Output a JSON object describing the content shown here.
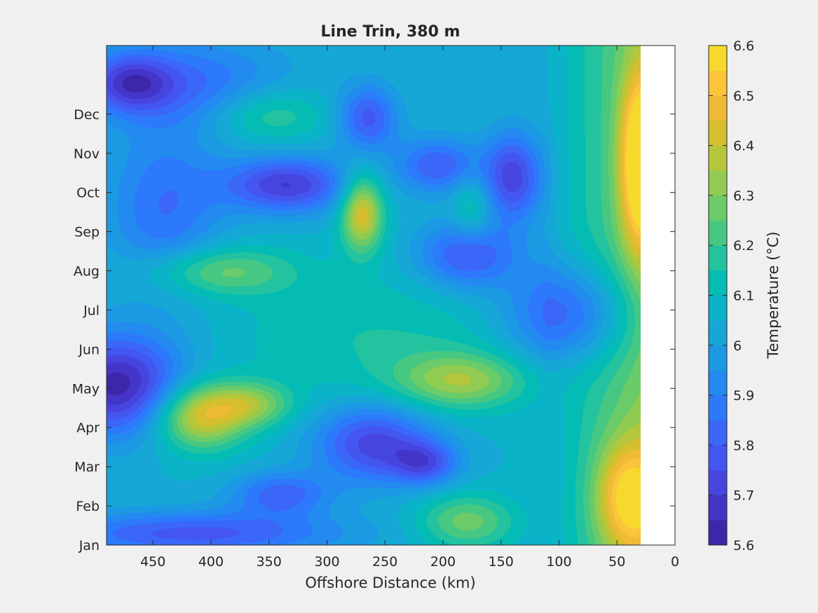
{
  "chart_data": {
    "type": "heatmap",
    "title": "Line Trin, 380 m",
    "xlabel": "Offshore Distance (km)",
    "ylabel": "",
    "x_axis_reversed": true,
    "xlim": [
      0,
      490
    ],
    "x_ticks": [
      450,
      400,
      350,
      300,
      250,
      200,
      150,
      100,
      50,
      0
    ],
    "y_ticks": [
      "Jan",
      "Feb",
      "Mar",
      "Apr",
      "May",
      "Jun",
      "Jul",
      "Aug",
      "Sep",
      "Oct",
      "Nov",
      "Dec"
    ],
    "no_data_region_x": [
      0,
      30
    ],
    "colorbar": {
      "label": "Temperature (°C)",
      "min": 5.6,
      "max": 6.6,
      "ticks": [
        "5.6",
        "5.7",
        "5.8",
        "5.9",
        "6",
        "6.1",
        "6.2",
        "6.3",
        "6.4",
        "6.5",
        "6.6"
      ],
      "levels": [
        5.6,
        5.65,
        5.7,
        5.75,
        5.8,
        5.85,
        5.9,
        5.95,
        6.0,
        6.05,
        6.1,
        6.15,
        6.2,
        6.25,
        6.3,
        6.35,
        6.4,
        6.45,
        6.5,
        6.55,
        6.6
      ],
      "colors": [
        "#3e26a8",
        "#4435c9",
        "#4745e0",
        "#4356f0",
        "#3a67f8",
        "#2d79fb",
        "#238af0",
        "#1c99e3",
        "#16a7d7",
        "#0bb3c8",
        "#05bcb4",
        "#22c39e",
        "#46c883",
        "#6bcb69",
        "#92cb52",
        "#b6c63a",
        "#d5bf2f",
        "#efba36",
        "#fbc43a",
        "#f7d92e",
        "#f5f01f"
      ]
    },
    "field_background": 6.05,
    "features": [
      {
        "x": 480,
        "month": 4.1,
        "value": 5.62,
        "sx": 40,
        "sy": 0.9
      },
      {
        "x": 470,
        "month": 11.8,
        "value": 5.78,
        "sx": 25,
        "sy": 0.5
      },
      {
        "x": 410,
        "month": 3.3,
        "value": 6.45,
        "sx": 28,
        "sy": 0.6
      },
      {
        "x": 365,
        "month": 3.6,
        "value": 6.28,
        "sx": 25,
        "sy": 0.4
      },
      {
        "x": 395,
        "month": 7.0,
        "value": 6.28,
        "sx": 45,
        "sy": 0.45
      },
      {
        "x": 350,
        "month": 11.0,
        "value": 6.22,
        "sx": 35,
        "sy": 0.5
      },
      {
        "x": 335,
        "month": 9.2,
        "value": 5.7,
        "sx": 38,
        "sy": 0.5
      },
      {
        "x": 270,
        "month": 8.5,
        "value": 6.45,
        "sx": 13,
        "sy": 0.7
      },
      {
        "x": 265,
        "month": 10.9,
        "value": 5.78,
        "sx": 18,
        "sy": 0.6
      },
      {
        "x": 260,
        "month": 2.6,
        "value": 5.72,
        "sx": 35,
        "sy": 0.7
      },
      {
        "x": 215,
        "month": 2.1,
        "value": 5.8,
        "sx": 20,
        "sy": 0.4
      },
      {
        "x": 205,
        "month": 9.7,
        "value": 5.8,
        "sx": 25,
        "sy": 0.5
      },
      {
        "x": 185,
        "month": 4.2,
        "value": 6.32,
        "sx": 40,
        "sy": 0.5
      },
      {
        "x": 180,
        "month": 0.6,
        "value": 6.28,
        "sx": 30,
        "sy": 0.5
      },
      {
        "x": 175,
        "month": 8.6,
        "value": 6.18,
        "sx": 12,
        "sy": 0.6
      },
      {
        "x": 180,
        "month": 7.4,
        "value": 5.78,
        "sx": 30,
        "sy": 0.6
      },
      {
        "x": 140,
        "month": 9.4,
        "value": 5.72,
        "sx": 18,
        "sy": 0.8
      },
      {
        "x": 90,
        "month": 5.9,
        "value": 5.78,
        "sx": 40,
        "sy": 0.9
      },
      {
        "x": 260,
        "month": 5.3,
        "value": 6.15,
        "sx": 90,
        "sy": 1.2
      },
      {
        "x": 415,
        "month": 0.3,
        "value": 5.78,
        "sx": 90,
        "sy": 0.4
      },
      {
        "x": 340,
        "month": 1.3,
        "value": 5.82,
        "sx": 30,
        "sy": 0.4
      },
      {
        "x": 440,
        "month": 8.6,
        "value": 5.85,
        "sx": 35,
        "sy": 1.5
      },
      {
        "x": 420,
        "month": 11.8,
        "value": 5.85,
        "sx": 60,
        "sy": 0.8
      },
      {
        "x": 40,
        "month": 1.2,
        "value": 6.42,
        "sx": 20,
        "sy": 1.0
      },
      {
        "x": 30,
        "month": 9.8,
        "value": 6.55,
        "sx": 12,
        "sy": 1.5
      }
    ]
  }
}
